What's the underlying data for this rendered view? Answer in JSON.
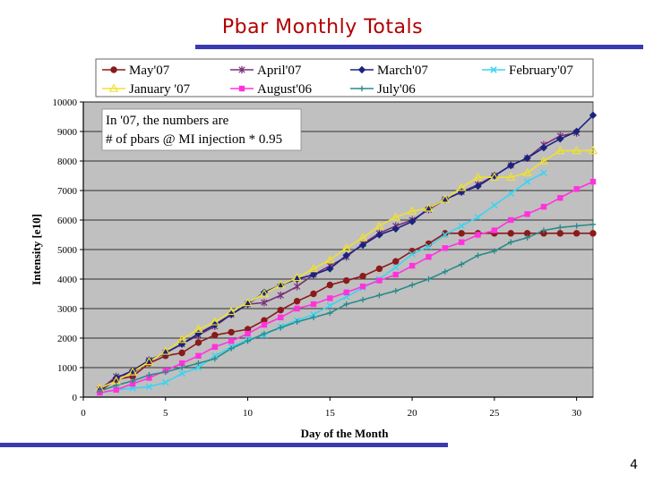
{
  "slide": {
    "title": "Pbar Monthly Totals",
    "page_number": "4"
  },
  "chart_data": {
    "type": "line",
    "title": "Pbar Monthly Totals",
    "xlabel": "Day of the  Month",
    "ylabel": "Intensity [e10]",
    "xlim": [
      0,
      31
    ],
    "ylim": [
      0,
      10000
    ],
    "xticks": [
      0,
      5,
      10,
      15,
      20,
      25,
      30
    ],
    "yticks": [
      0,
      1000,
      2000,
      3000,
      4000,
      5000,
      6000,
      7000,
      8000,
      9000,
      10000
    ],
    "grid": true,
    "annotation": {
      "line1": "In '07, the numbers are",
      "line2": "# of pbars @ MI injection * 0.95"
    },
    "legend_placement": "top",
    "series": [
      {
        "name": "May'07",
        "color": "#8b1a1a",
        "marker": "circle",
        "x": [
          1,
          2,
          3,
          4,
          5,
          6,
          7,
          8,
          9,
          10,
          11,
          12,
          13,
          14,
          15,
          16,
          17,
          18,
          19,
          20,
          21,
          22,
          23,
          24,
          25,
          26,
          27,
          28,
          29,
          30,
          31
        ],
        "y": [
          200,
          600,
          700,
          1150,
          1400,
          1500,
          1850,
          2100,
          2200,
          2300,
          2600,
          2950,
          3250,
          3500,
          3800,
          3950,
          4100,
          4350,
          4600,
          4950,
          5200,
          5550,
          5550,
          5550,
          5550,
          5550,
          5550,
          5550,
          5550,
          5550,
          5550
        ]
      },
      {
        "name": "April'07",
        "color": "#7a2f7a",
        "marker": "star",
        "x": [
          1,
          2,
          3,
          4,
          5,
          6,
          7,
          8,
          9,
          10,
          11,
          12,
          13,
          14,
          15,
          16,
          17,
          18,
          19,
          20,
          21,
          22,
          23,
          24,
          25,
          26,
          27,
          28,
          29,
          30
        ],
        "y": [
          250,
          700,
          800,
          1250,
          1500,
          1800,
          2100,
          2400,
          2800,
          3150,
          3200,
          3450,
          3750,
          4150,
          4450,
          4750,
          5200,
          5550,
          5800,
          6000,
          6350,
          6700,
          6950,
          7200,
          7500,
          7850,
          8100,
          8550,
          8850,
          8950
        ]
      },
      {
        "name": "March'07",
        "color": "#1a237e",
        "marker": "diamond",
        "x": [
          1,
          2,
          3,
          4,
          5,
          6,
          7,
          8,
          9,
          10,
          11,
          12,
          13,
          14,
          15,
          16,
          17,
          18,
          19,
          20,
          21,
          22,
          23,
          24,
          25,
          26,
          27,
          28,
          29,
          30,
          31
        ],
        "y": [
          200,
          650,
          900,
          1250,
          1500,
          1800,
          2150,
          2450,
          2800,
          3150,
          3550,
          3800,
          4000,
          4150,
          4350,
          4800,
          5150,
          5500,
          5700,
          5950,
          6400,
          6700,
          6950,
          7150,
          7500,
          7850,
          8100,
          8450,
          8750,
          9000,
          9550
        ]
      },
      {
        "name": "February'07",
        "color": "#3bd4f0",
        "marker": "x",
        "x": [
          1,
          2,
          3,
          4,
          5,
          6,
          7,
          8,
          9,
          10,
          11,
          12,
          13,
          14,
          15,
          16,
          17,
          18,
          19,
          20,
          21,
          22,
          23,
          24,
          25,
          26,
          27,
          28
        ],
        "y": [
          150,
          250,
          300,
          350,
          500,
          800,
          1000,
          1400,
          1700,
          1950,
          2100,
          2400,
          2600,
          2800,
          3100,
          3400,
          3700,
          4000,
          4400,
          4850,
          5100,
          5500,
          5800,
          6100,
          6500,
          6900,
          7300,
          7600
        ]
      },
      {
        "name": "January '07",
        "color": "#f0e030",
        "marker": "triangle",
        "x": [
          1,
          2,
          3,
          4,
          5,
          6,
          7,
          8,
          9,
          10,
          11,
          12,
          13,
          14,
          15,
          16,
          17,
          18,
          19,
          20,
          21,
          22,
          23,
          24,
          25,
          26,
          27,
          28,
          29,
          30,
          31
        ],
        "y": [
          300,
          550,
          850,
          1200,
          1550,
          1950,
          2300,
          2550,
          2900,
          3200,
          3500,
          3800,
          4050,
          4350,
          4650,
          5050,
          5400,
          5800,
          6100,
          6300,
          6400,
          6700,
          7100,
          7450,
          7450,
          7450,
          7600,
          8000,
          8350,
          8350,
          8350
        ]
      },
      {
        "name": "August'06",
        "color": "#ff33dd",
        "marker": "square",
        "x": [
          1,
          2,
          3,
          4,
          5,
          6,
          7,
          8,
          9,
          10,
          11,
          12,
          13,
          14,
          15,
          16,
          17,
          18,
          19,
          20,
          21,
          22,
          23,
          24,
          25,
          26,
          27,
          28,
          29,
          30,
          31
        ],
        "y": [
          150,
          250,
          450,
          650,
          900,
          1150,
          1400,
          1700,
          1900,
          2150,
          2450,
          2700,
          3000,
          3150,
          3350,
          3550,
          3750,
          3950,
          4150,
          4450,
          4750,
          5050,
          5250,
          5500,
          5650,
          6000,
          6200,
          6450,
          6750,
          7050,
          7300
        ]
      },
      {
        "name": "July'06",
        "color": "#2a8a8a",
        "marker": "plus",
        "x": [
          1,
          2,
          3,
          4,
          5,
          6,
          7,
          8,
          9,
          10,
          11,
          12,
          13,
          14,
          15,
          16,
          17,
          18,
          19,
          20,
          21,
          22,
          23,
          24,
          25,
          26,
          27,
          28,
          29,
          30,
          31
        ],
        "y": [
          200,
          400,
          550,
          750,
          850,
          1000,
          1150,
          1300,
          1650,
          1900,
          2150,
          2350,
          2550,
          2700,
          2850,
          3150,
          3300,
          3450,
          3600,
          3800,
          4000,
          4250,
          4500,
          4800,
          4950,
          5250,
          5400,
          5650,
          5750,
          5800,
          5850
        ]
      }
    ]
  }
}
